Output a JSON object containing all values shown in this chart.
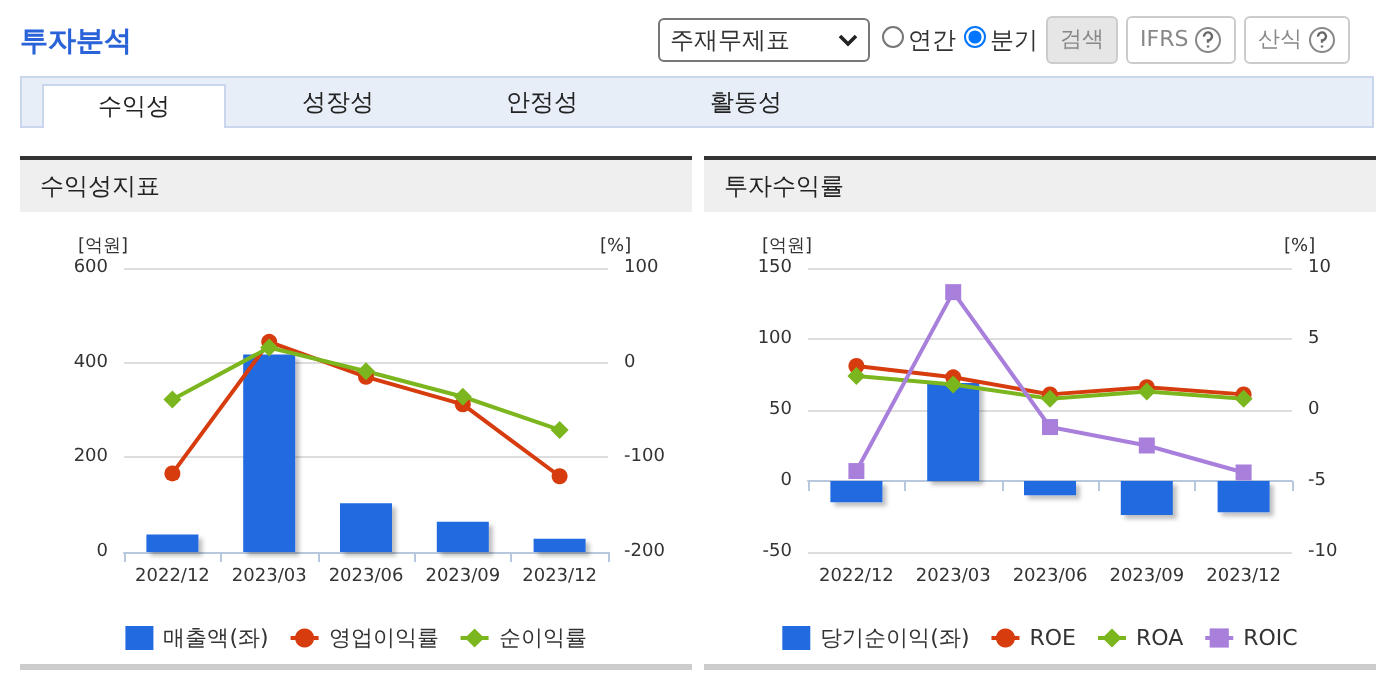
{
  "chart_data": [
    {
      "type": "other",
      "title": "투자분석",
      "annotations": [
        "주재무제표",
        "연간",
        "분기",
        "검색",
        "IFRS",
        "산식",
        "수익성",
        "성장성",
        "안정성",
        "활동성"
      ]
    },
    {
      "type": "bar",
      "title": "수익성지표",
      "ylabel": "[억원]",
      "y2label": "[%]",
      "categories": [
        "2022/12",
        "2023/03",
        "2023/06",
        "2023/09",
        "2023/12"
      ],
      "ylim": [
        0,
        600
      ],
      "yticks": [
        0,
        200,
        400,
        600
      ],
      "y2lim": [
        -200,
        100
      ],
      "y2ticks": [
        -200,
        -100,
        0,
        100
      ],
      "grid": "y",
      "legend": "bottom",
      "series": [
        {
          "name": "매출액(좌)",
          "type": "bar",
          "color": "#216ae0",
          "values": [
            37,
            417,
            103,
            64,
            28
          ]
        },
        {
          "name": "영업이익률",
          "type": "line",
          "axis": "y2",
          "marker": "circle",
          "color": "#d63c0e",
          "values": [
            -117,
            22,
            -15,
            -44,
            -120
          ]
        },
        {
          "name": "순이익률",
          "type": "line",
          "axis": "y2",
          "marker": "diamond",
          "color": "#7cb61e",
          "values": [
            -39,
            16,
            -9,
            -36,
            -71
          ]
        }
      ]
    },
    {
      "type": "bar",
      "title": "투자수익률",
      "ylabel": "[억원]",
      "y2label": "[%]",
      "categories": [
        "2022/12",
        "2023/03",
        "2023/06",
        "2023/09",
        "2023/12"
      ],
      "ylim": [
        -50,
        150
      ],
      "yticks": [
        -50,
        0,
        50,
        100,
        150
      ],
      "y2lim": [
        -10,
        10
      ],
      "y2ticks": [
        -10,
        -5,
        0,
        5,
        10
      ],
      "grid": "y",
      "legend": "bottom",
      "series": [
        {
          "name": "당기순이익(좌)",
          "type": "bar",
          "color": "#216ae0",
          "values": [
            -15,
            69,
            -10,
            -24,
            -22
          ]
        },
        {
          "name": "ROE",
          "type": "line",
          "axis": "y2",
          "marker": "circle",
          "color": "#d63c0e",
          "values": [
            3.1,
            2.3,
            1.1,
            1.6,
            1.1
          ]
        },
        {
          "name": "ROA",
          "type": "line",
          "axis": "y2",
          "marker": "diamond",
          "color": "#7cb61e",
          "values": [
            2.4,
            1.8,
            0.8,
            1.3,
            0.8
          ]
        },
        {
          "name": "ROIC",
          "type": "line",
          "axis": "y2",
          "marker": "square",
          "color": "#a880dc",
          "values": [
            -4.3,
            8.3,
            -1.2,
            -2.5,
            -4.4
          ]
        }
      ]
    }
  ]
}
